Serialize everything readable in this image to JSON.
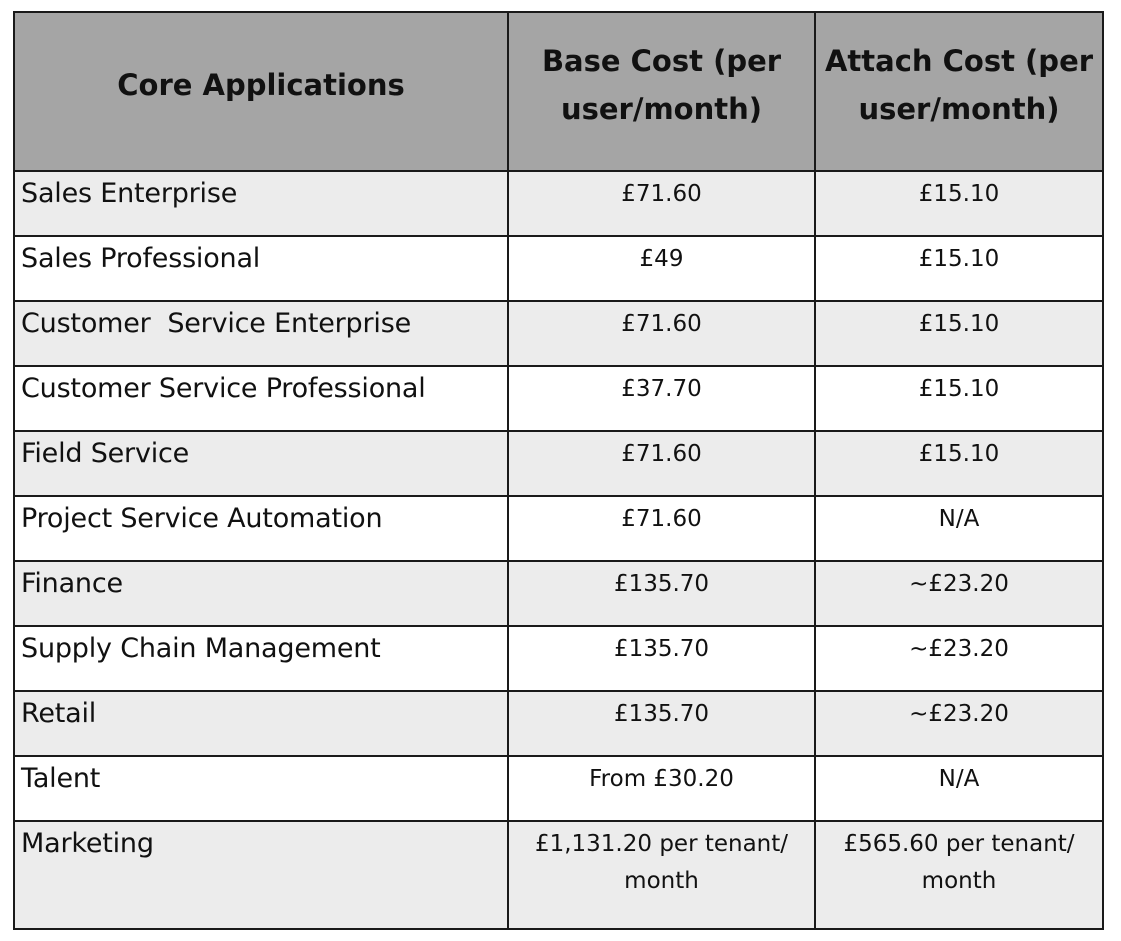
{
  "headers": {
    "app": "Core Applications",
    "base": "Base Cost (per user/month)",
    "attach": "Attach Cost (per user/month)"
  },
  "rows": [
    {
      "app": "Sales Enterprise",
      "base": "£71.60",
      "attach": "£15.10"
    },
    {
      "app": "Sales Professional",
      "base": "£49",
      "attach": "£15.10"
    },
    {
      "app": "Customer  Service Enterprise",
      "base": "£71.60",
      "attach": "£15.10"
    },
    {
      "app": "Customer Service Professional",
      "base": "£37.70",
      "attach": "£15.10"
    },
    {
      "app": "Field Service",
      "base": "£71.60",
      "attach": "£15.10"
    },
    {
      "app": "Project Service Automation",
      "base": "£71.60",
      "attach": "N/A"
    },
    {
      "app": "Finance",
      "base": "£135.70",
      "attach": "~£23.20"
    },
    {
      "app": "Supply Chain Management",
      "base": "£135.70",
      "attach": "~£23.20"
    },
    {
      "app": "Retail",
      "base": "£135.70",
      "attach": "~£23.20"
    },
    {
      "app": "Talent",
      "base": "From £30.20",
      "attach": "N/A"
    },
    {
      "app": "Marketing",
      "base": "£1,131.20 per tenant/ month",
      "attach": "£565.60 per tenant/ month"
    }
  ],
  "colors": {
    "header_bg": "#a5a5a5",
    "row_alt_bg": "#ececec",
    "row_bg": "#ffffff",
    "border": "#1a1a1a"
  }
}
